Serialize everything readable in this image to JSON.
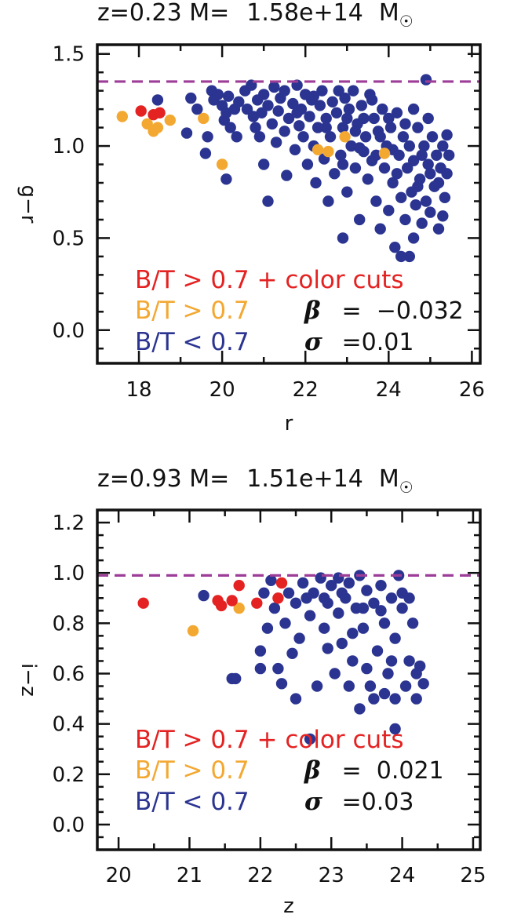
{
  "colors": {
    "red": "#e42222",
    "orange": "#f3a832",
    "blue": "#2b3591",
    "dashed_line": "#9d3d98",
    "black": "#111111"
  },
  "chart_data": [
    {
      "type": "scatter",
      "title": {
        "prefix": "z=0.23 M=",
        "mass": "1.58e+14",
        "unit": "M",
        "unit_symbol": "☉"
      },
      "xlabel": "r",
      "ylabel": "g−r",
      "xlim": [
        17.0,
        26.2
      ],
      "ylim": [
        -0.18,
        1.55
      ],
      "xticks": [
        18,
        20,
        22,
        24,
        26
      ],
      "xtick_labels": [
        "18",
        "20",
        "22",
        "24",
        "26"
      ],
      "yticks": [
        0.0,
        0.5,
        1.0,
        1.5
      ],
      "ytick_labels": [
        "0.0",
        "0.5",
        "1.0",
        "1.5"
      ],
      "reference_line_y": 1.35,
      "legend": [
        {
          "label": "B/T > 0.7 + color cuts",
          "color": "#e42222"
        },
        {
          "label": "B/T > 0.7",
          "color": "#f3a832"
        },
        {
          "label": "B/T < 0.7",
          "color": "#2b3591"
        }
      ],
      "stats": {
        "beta_symbol": "β",
        "beta_text": " =  −0.032",
        "sigma_symbol": "σ",
        "sigma_text": " =0.01"
      },
      "series": [
        {
          "color": "#e42222",
          "points": [
            [
              18.05,
              1.19
            ],
            [
              18.35,
              1.17
            ],
            [
              18.5,
              1.18
            ]
          ]
        },
        {
          "color": "#f3a832",
          "points": [
            [
              17.6,
              1.16
            ],
            [
              18.2,
              1.12
            ],
            [
              18.35,
              1.08
            ],
            [
              18.45,
              1.1
            ],
            [
              18.75,
              1.14
            ],
            [
              19.55,
              1.15
            ],
            [
              20.0,
              0.9
            ],
            [
              22.3,
              0.98
            ],
            [
              22.55,
              0.97
            ],
            [
              22.95,
              1.05
            ],
            [
              23.9,
              0.96
            ]
          ]
        },
        {
          "color": "#2b3591",
          "points": [
            [
              18.45,
              1.25
            ],
            [
              19.15,
              1.07
            ],
            [
              19.25,
              1.26
            ],
            [
              19.4,
              1.2
            ],
            [
              19.6,
              0.96
            ],
            [
              19.65,
              1.05
            ],
            [
              19.75,
              1.3
            ],
            [
              19.8,
              1.25
            ],
            [
              19.9,
              1.28
            ],
            [
              20.0,
              1.22
            ],
            [
              20.05,
              1.14
            ],
            [
              20.1,
              1.18
            ],
            [
              20.1,
              0.82
            ],
            [
              20.15,
              1.27
            ],
            [
              20.2,
              1.1
            ],
            [
              20.3,
              1.2
            ],
            [
              20.35,
              1.05
            ],
            [
              20.4,
              1.24
            ],
            [
              20.55,
              1.3
            ],
            [
              20.6,
              1.2
            ],
            [
              20.7,
              1.33
            ],
            [
              20.75,
              1.16
            ],
            [
              20.8,
              1.1
            ],
            [
              20.85,
              1.25
            ],
            [
              20.9,
              1.05
            ],
            [
              20.95,
              1.18
            ],
            [
              21.0,
              1.28
            ],
            [
              21.0,
              0.9
            ],
            [
              21.1,
              1.22
            ],
            [
              21.1,
              0.7
            ],
            [
              21.2,
              1.12
            ],
            [
              21.25,
              1.32
            ],
            [
              21.3,
              1.02
            ],
            [
              21.35,
              1.19
            ],
            [
              21.4,
              1.26
            ],
            [
              21.5,
              1.08
            ],
            [
              21.5,
              1.3
            ],
            [
              21.55,
              0.84
            ],
            [
              21.6,
              1.15
            ],
            [
              21.7,
              1.23
            ],
            [
              21.75,
              0.98
            ],
            [
              21.8,
              1.33
            ],
            [
              21.85,
              1.11
            ],
            [
              21.9,
              1.2
            ],
            [
              21.95,
              1.05
            ],
            [
              22.0,
              1.28
            ],
            [
              22.05,
              0.9
            ],
            [
              22.1,
              1.16
            ],
            [
              22.15,
              1.25
            ],
            [
              22.2,
              1.0
            ],
            [
              22.25,
              0.8
            ],
            [
              22.3,
              1.1
            ],
            [
              22.35,
              1.22
            ],
            [
              22.4,
              1.3
            ],
            [
              22.45,
              0.93
            ],
            [
              22.5,
              1.15
            ],
            [
              22.55,
              0.7
            ],
            [
              22.6,
              1.05
            ],
            [
              22.65,
              1.24
            ],
            [
              22.7,
              0.85
            ],
            [
              22.75,
              1.18
            ],
            [
              22.8,
              1.3
            ],
            [
              22.85,
              0.95
            ],
            [
              22.9,
              1.1
            ],
            [
              22.9,
              0.5
            ],
            [
              22.95,
              1.26
            ],
            [
              23.0,
              0.75
            ],
            [
              23.05,
              1.2
            ],
            [
              23.1,
              1.0
            ],
            [
              23.15,
              1.3
            ],
            [
              23.2,
              0.88
            ],
            [
              23.25,
              1.12
            ],
            [
              23.3,
              0.6
            ],
            [
              23.35,
              1.22
            ],
            [
              23.4,
              0.97
            ],
            [
              23.45,
              1.05
            ],
            [
              23.5,
              0.82
            ],
            [
              23.55,
              1.28
            ],
            [
              23.6,
              0.92
            ],
            [
              23.65,
              1.15
            ],
            [
              23.7,
              0.7
            ],
            [
              23.75,
              1.08
            ],
            [
              23.8,
              0.55
            ],
            [
              23.85,
              1.2
            ],
            [
              23.9,
              0.88
            ],
            [
              23.95,
              1.0
            ],
            [
              24.0,
              0.65
            ],
            [
              24.05,
              1.1
            ],
            [
              24.1,
              0.8
            ],
            [
              24.15,
              0.45
            ],
            [
              24.2,
              1.18
            ],
            [
              24.25,
              0.95
            ],
            [
              24.3,
              0.4
            ],
            [
              24.3,
              0.72
            ],
            [
              24.35,
              1.05
            ],
            [
              24.4,
              0.6
            ],
            [
              24.45,
              0.88
            ],
            [
              24.5,
              0.4
            ],
            [
              24.5,
              1.0
            ],
            [
              24.55,
              0.75
            ],
            [
              24.6,
              0.92
            ],
            [
              24.65,
              0.68
            ],
            [
              24.7,
              1.1
            ],
            [
              24.75,
              0.82
            ],
            [
              24.8,
              0.58
            ],
            [
              24.85,
              1.0
            ],
            [
              24.9,
              0.7
            ],
            [
              24.9,
              1.36
            ],
            [
              24.95,
              0.9
            ],
            [
              25.0,
              0.64
            ],
            [
              25.05,
              1.05
            ],
            [
              25.1,
              0.78
            ],
            [
              25.15,
              0.95
            ],
            [
              25.2,
              0.55
            ],
            [
              25.25,
              0.88
            ],
            [
              25.3,
              1.0
            ],
            [
              25.35,
              0.72
            ],
            [
              25.4,
              0.85
            ],
            [
              25.4,
              1.06
            ],
            [
              24.0,
              1.15
            ],
            [
              23.6,
              1.25
            ],
            [
              23.0,
              1.15
            ],
            [
              22.5,
              1.1
            ],
            [
              24.6,
              1.2
            ],
            [
              24.2,
              0.85
            ],
            [
              23.8,
              1.05
            ],
            [
              24.8,
              0.95
            ],
            [
              25.2,
              0.8
            ],
            [
              23.4,
              1.15
            ],
            [
              22.9,
              0.9
            ],
            [
              24.4,
              1.12
            ],
            [
              25.0,
              0.85
            ],
            [
              24.6,
              0.5
            ],
            [
              25.3,
              0.62
            ],
            [
              24.7,
              0.78
            ],
            [
              21.8,
              1.18
            ],
            [
              22.2,
              1.27
            ],
            [
              23.2,
              1.08
            ],
            [
              24.1,
              0.98
            ],
            [
              23.7,
              0.95
            ],
            [
              25.45,
              0.95
            ],
            [
              24.95,
              1.15
            ],
            [
              23.3,
              0.99
            ]
          ]
        }
      ]
    },
    {
      "type": "scatter",
      "title": {
        "prefix": "z=0.93 M=",
        "mass": "1.51e+14",
        "unit": "M",
        "unit_symbol": "☉"
      },
      "xlabel": "z",
      "ylabel": "i−z",
      "xlim": [
        19.7,
        25.1
      ],
      "ylim": [
        -0.1,
        1.25
      ],
      "xticks": [
        20,
        21,
        22,
        23,
        24,
        25
      ],
      "xtick_labels": [
        "20",
        "21",
        "22",
        "23",
        "24",
        "25"
      ],
      "yticks": [
        0.0,
        0.2,
        0.4,
        0.6,
        0.8,
        1.0,
        1.2
      ],
      "ytick_labels": [
        "0.0",
        "0.2",
        "0.4",
        "0.6",
        "0.8",
        "1.0",
        "1.2"
      ],
      "reference_line_y": 0.99,
      "legend": [
        {
          "label": "B/T > 0.7 + color cuts",
          "color": "#e42222"
        },
        {
          "label": "B/T > 0.7",
          "color": "#f3a832"
        },
        {
          "label": "B/T < 0.7",
          "color": "#2b3591"
        }
      ],
      "stats": {
        "beta_symbol": "β",
        "beta_text": " =  0.021",
        "sigma_symbol": "σ",
        "sigma_text": " =0.03"
      },
      "series": [
        {
          "color": "#e42222",
          "points": [
            [
              20.35,
              0.88
            ],
            [
              21.4,
              0.89
            ],
            [
              21.45,
              0.87
            ],
            [
              21.6,
              0.89
            ],
            [
              21.7,
              0.95
            ],
            [
              21.95,
              0.88
            ],
            [
              22.25,
              0.9
            ],
            [
              22.3,
              0.96
            ]
          ]
        },
        {
          "color": "#f3a832",
          "points": [
            [
              21.05,
              0.77
            ],
            [
              21.7,
              0.86
            ]
          ]
        },
        {
          "color": "#2b3591",
          "points": [
            [
              21.2,
              0.91
            ],
            [
              21.6,
              0.58
            ],
            [
              21.65,
              0.58
            ],
            [
              22.0,
              0.69
            ],
            [
              22.0,
              0.62
            ],
            [
              22.05,
              0.92
            ],
            [
              22.1,
              0.78
            ],
            [
              22.15,
              0.97
            ],
            [
              22.2,
              0.86
            ],
            [
              22.25,
              0.62
            ],
            [
              22.3,
              0.56
            ],
            [
              22.35,
              0.8
            ],
            [
              22.4,
              0.92
            ],
            [
              22.45,
              0.68
            ],
            [
              22.5,
              0.88
            ],
            [
              22.55,
              0.74
            ],
            [
              22.6,
              0.96
            ],
            [
              22.7,
              0.34
            ],
            [
              22.7,
              0.83
            ],
            [
              22.75,
              0.92
            ],
            [
              22.8,
              0.55
            ],
            [
              22.85,
              0.98
            ],
            [
              22.9,
              0.78
            ],
            [
              22.95,
              0.88
            ],
            [
              23.0,
              0.95
            ],
            [
              23.05,
              0.6
            ],
            [
              23.1,
              0.84
            ],
            [
              23.15,
              0.72
            ],
            [
              23.2,
              0.9
            ],
            [
              23.25,
              0.96
            ],
            [
              23.3,
              0.65
            ],
            [
              23.35,
              0.86
            ],
            [
              23.4,
              0.46
            ],
            [
              23.4,
              0.99
            ],
            [
              23.45,
              0.78
            ],
            [
              23.5,
              0.93
            ],
            [
              23.55,
              0.55
            ],
            [
              23.6,
              0.88
            ],
            [
              23.65,
              0.69
            ],
            [
              23.7,
              0.95
            ],
            [
              23.75,
              0.8
            ],
            [
              23.8,
              0.6
            ],
            [
              23.85,
              0.9
            ],
            [
              23.9,
              0.38
            ],
            [
              23.9,
              0.74
            ],
            [
              23.95,
              0.99
            ],
            [
              24.0,
              0.86
            ],
            [
              24.05,
              0.55
            ],
            [
              24.1,
              0.65
            ],
            [
              24.15,
              0.8
            ],
            [
              24.2,
              0.5
            ],
            [
              24.25,
              0.63
            ],
            [
              24.3,
              0.56
            ],
            [
              24.0,
              0.92
            ],
            [
              23.1,
              0.98
            ],
            [
              22.5,
              0.5
            ],
            [
              23.6,
              0.5
            ],
            [
              23.9,
              0.5
            ],
            [
              24.1,
              0.9
            ],
            [
              23.3,
              0.76
            ],
            [
              22.95,
              0.7
            ],
            [
              23.5,
              0.62
            ],
            [
              23.75,
              0.52
            ],
            [
              22.65,
              0.9
            ],
            [
              23.15,
              0.92
            ],
            [
              23.7,
              0.85
            ],
            [
              24.2,
              0.6
            ],
            [
              23.45,
              0.86
            ],
            [
              22.9,
              0.9
            ],
            [
              23.85,
              0.65
            ],
            [
              23.25,
              0.55
            ]
          ]
        }
      ]
    }
  ]
}
